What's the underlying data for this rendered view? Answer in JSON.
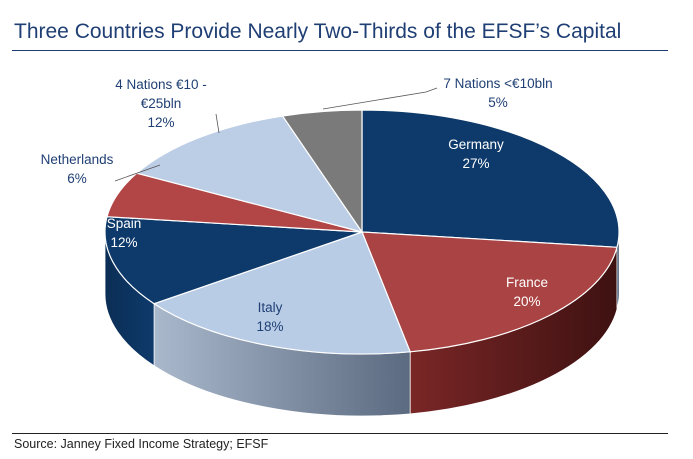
{
  "title": "Three Countries Provide Nearly Two-Thirds of the EFSF’s Capital",
  "source": "Source: Janney Fixed Income Strategy; EFSF",
  "chart_data": {
    "type": "pie",
    "title": "Three Countries Provide Nearly Two-Thirds of the EFSF’s Capital",
    "slices": [
      {
        "label": "Germany",
        "value": 27,
        "value_text": "27%",
        "color": "#0e3a6b"
      },
      {
        "label": "France",
        "value": 20,
        "value_text": "20%",
        "color": "#aa4343"
      },
      {
        "label": "Italy",
        "value": 18,
        "value_text": "18%",
        "color": "#b9cce6"
      },
      {
        "label": "Spain",
        "value": 12,
        "value_text": "12%",
        "color": "#0e3a6b"
      },
      {
        "label": "Netherlands",
        "value": 6,
        "value_text": "6%",
        "color": "#b24545"
      },
      {
        "label": "4 Nations €10 - €25bln",
        "label_lines": [
          "4 Nations €10 -",
          "€25bln"
        ],
        "value": 12,
        "value_text": "12%",
        "color": "#bccde6"
      },
      {
        "label": "7 Nations <€10bln",
        "value": 5,
        "value_text": "5%",
        "color": "#7a7a7a"
      }
    ],
    "style": "3d-pie"
  }
}
